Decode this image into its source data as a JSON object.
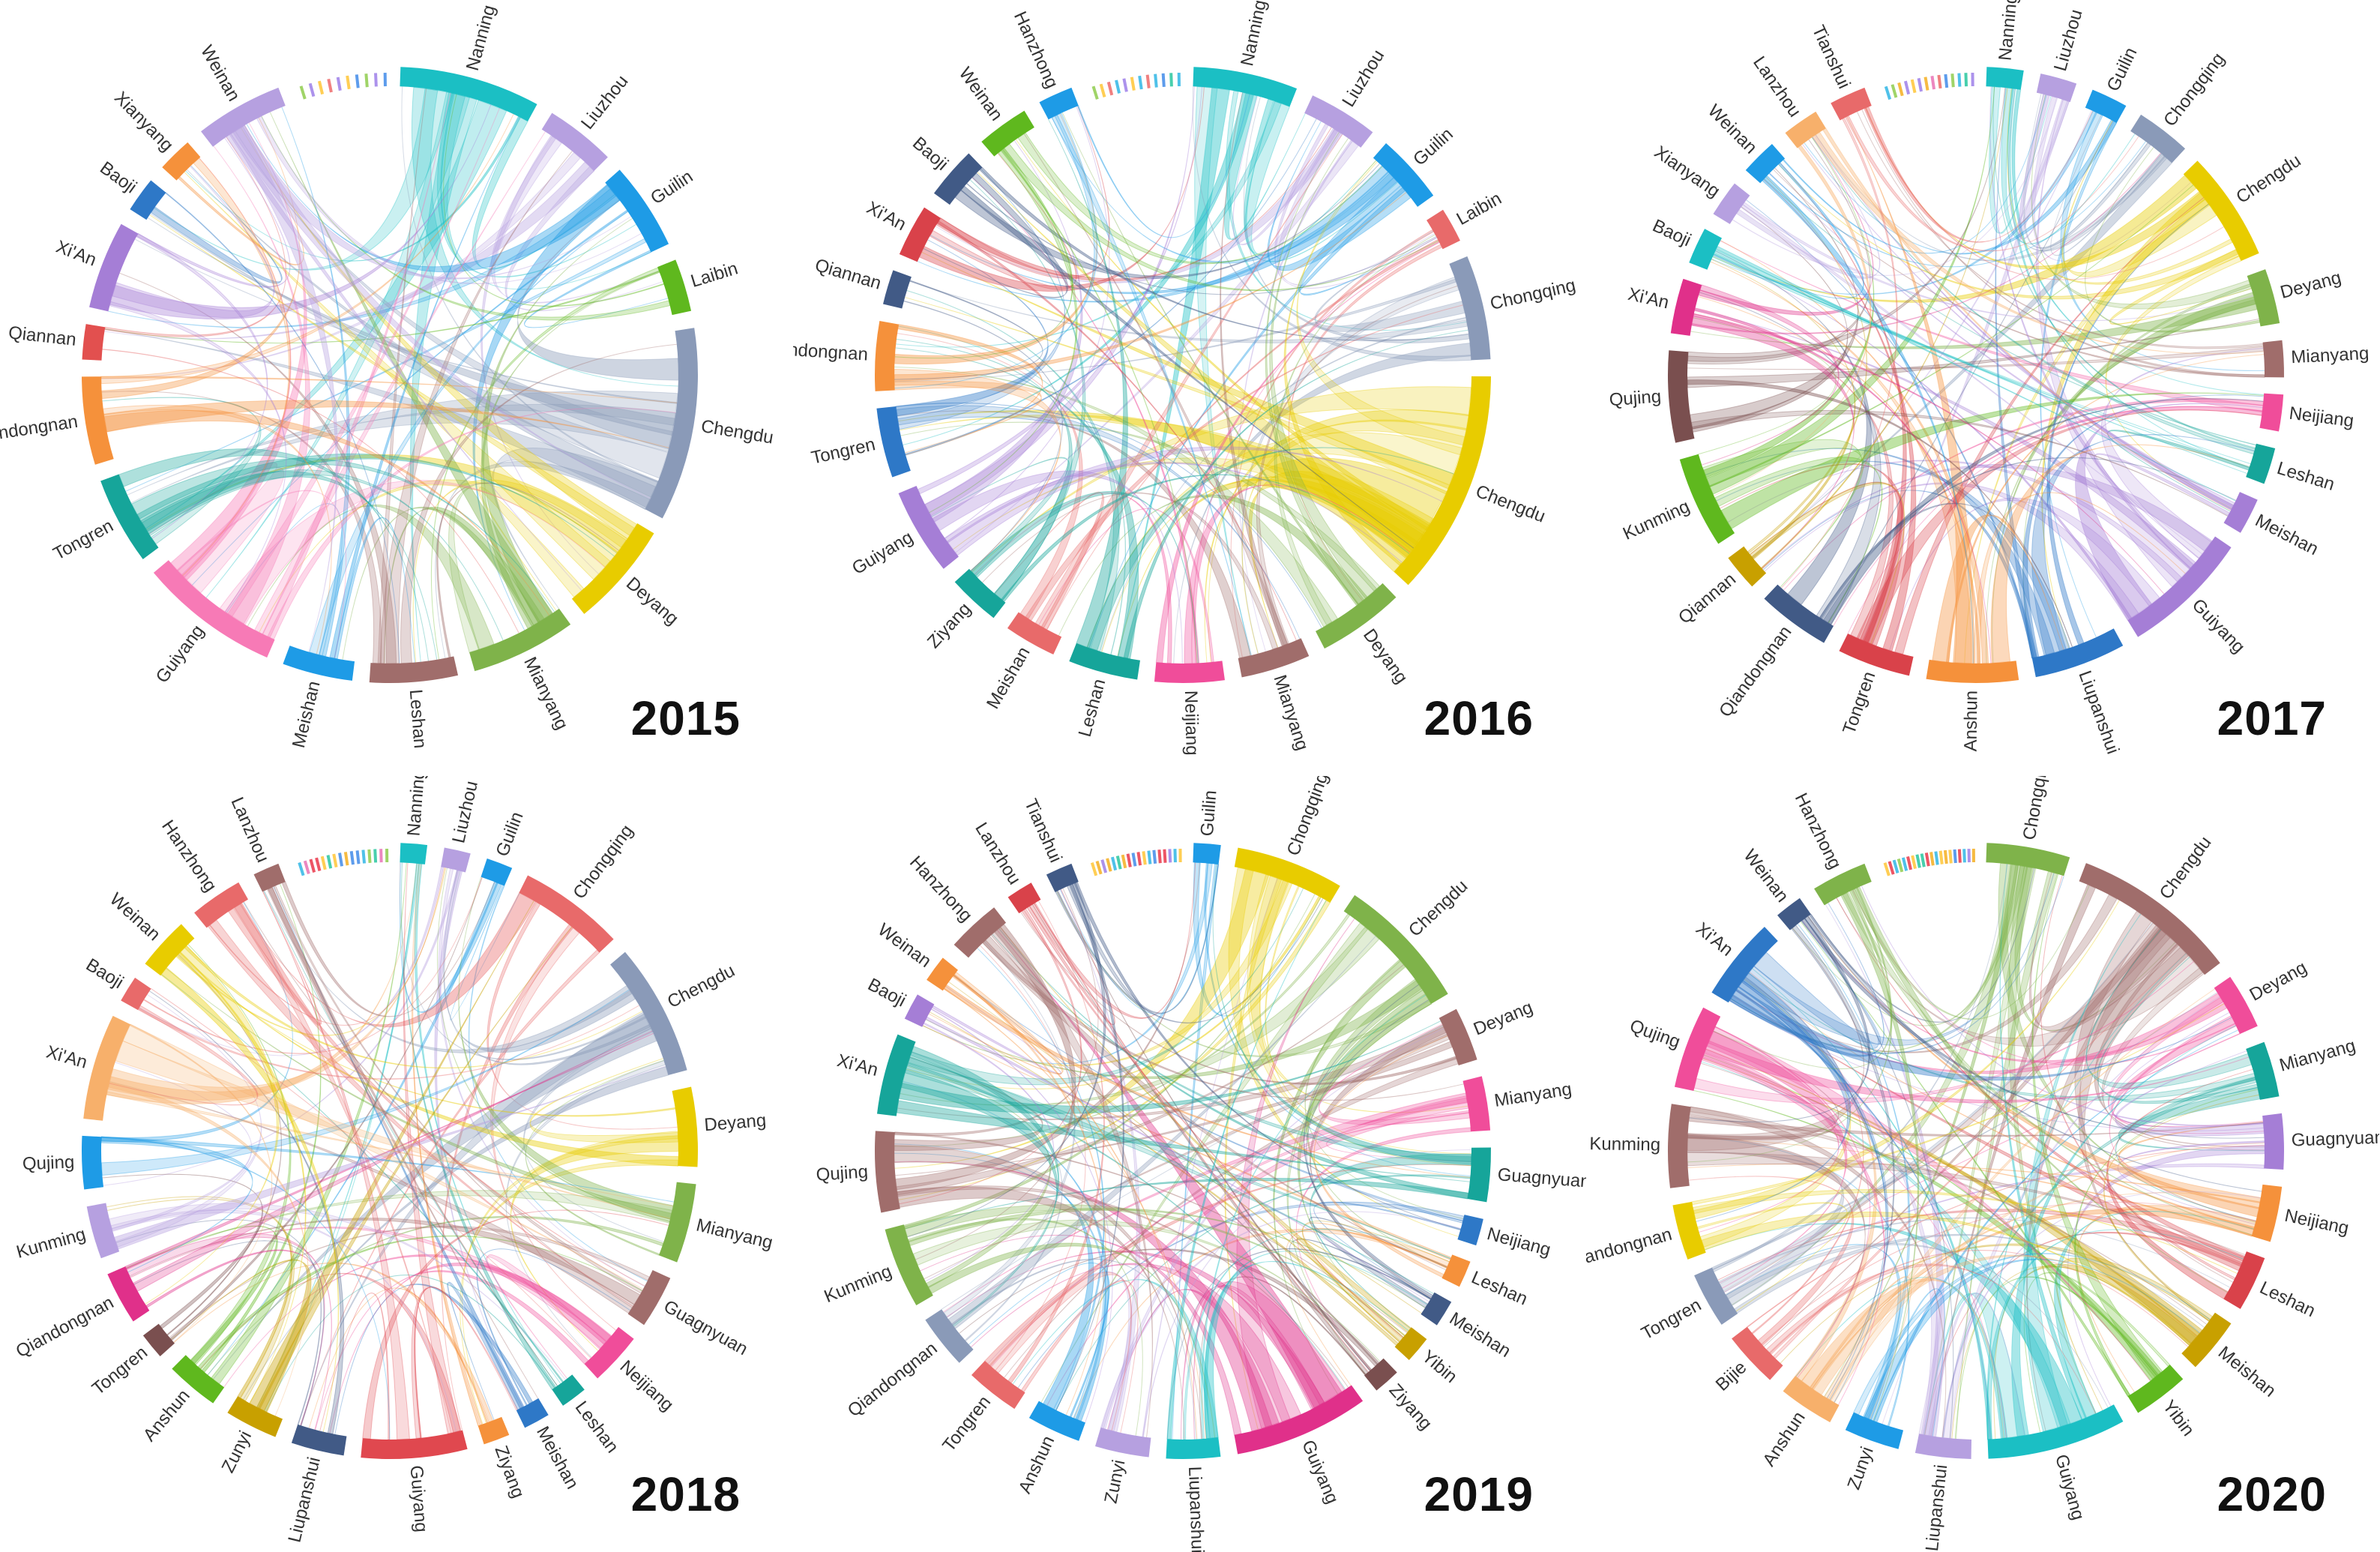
{
  "chart_data": [
    {
      "type": "chord",
      "year": "2015",
      "nodes": [
        {
          "name": "Nanning",
          "weight": 8,
          "color": "#1bbfc4"
        },
        {
          "name": "Liuzhou",
          "weight": 4,
          "color": "#b6a0e0"
        },
        {
          "name": "Guilin",
          "weight": 5,
          "color": "#1e9be6"
        },
        {
          "name": "Laibin",
          "weight": 3,
          "color": "#5fb81e"
        },
        {
          "name": "Chengdu",
          "weight": 11,
          "color": "#8a9ab8"
        },
        {
          "name": "Deyang",
          "weight": 6,
          "color": "#e8cc00"
        },
        {
          "name": "Mianyang",
          "weight": 6,
          "color": "#7fb34a"
        },
        {
          "name": "Leshan",
          "weight": 5,
          "color": "#a06d6b"
        },
        {
          "name": "Meishan",
          "weight": 4,
          "color": "#1e9be6"
        },
        {
          "name": "Guiyang",
          "weight": 8,
          "color": "#f77ab6"
        },
        {
          "name": "Tongren",
          "weight": 5,
          "color": "#16a59a"
        },
        {
          "name": "Qiandongnan",
          "weight": 5,
          "color": "#f5913b"
        },
        {
          "name": "Qiannan",
          "weight": 2,
          "color": "#e2504f"
        },
        {
          "name": "Xi'An",
          "weight": 5,
          "color": "#a57ed6"
        },
        {
          "name": "Baoji",
          "weight": 2,
          "color": "#2e78c7"
        },
        {
          "name": "Xianyang",
          "weight": 2,
          "color": "#f5913b"
        },
        {
          "name": "Weinan",
          "weight": 5,
          "color": "#b6a0e0"
        }
      ]
    },
    {
      "type": "chord",
      "year": "2016",
      "nodes": [
        {
          "name": "Nanning",
          "weight": 6,
          "color": "#1bbfc4"
        },
        {
          "name": "Liuzhou",
          "weight": 4,
          "color": "#b6a0e0"
        },
        {
          "name": "Guilin",
          "weight": 4,
          "color": "#1e9be6"
        },
        {
          "name": "Laibin",
          "weight": 2,
          "color": "#e86a6a"
        },
        {
          "name": "Chongqing",
          "weight": 6,
          "color": "#8a9ab8"
        },
        {
          "name": "Chengdu",
          "weight": 13,
          "color": "#e8cc00"
        },
        {
          "name": "Deyang",
          "weight": 5,
          "color": "#7fb34a"
        },
        {
          "name": "Mianyang",
          "weight": 4,
          "color": "#a06d6b"
        },
        {
          "name": "Neijiang",
          "weight": 4,
          "color": "#f04d9a"
        },
        {
          "name": "Leshan",
          "weight": 4,
          "color": "#16a59a"
        },
        {
          "name": "Meishan",
          "weight": 3,
          "color": "#e86a6a"
        },
        {
          "name": "Ziyang",
          "weight": 3,
          "color": "#16a59a"
        },
        {
          "name": "Guiyang",
          "weight": 5,
          "color": "#a57ed6"
        },
        {
          "name": "Tongren",
          "weight": 4,
          "color": "#2e78c7"
        },
        {
          "name": "Qiandongnan",
          "weight": 4,
          "color": "#f5913b"
        },
        {
          "name": "Qiannan",
          "weight": 2,
          "color": "#415a86"
        },
        {
          "name": "Xi'An",
          "weight": 3,
          "color": "#d9424a"
        },
        {
          "name": "Baoji",
          "weight": 3,
          "color": "#415a86"
        },
        {
          "name": "Weinan",
          "weight": 3,
          "color": "#5fb81e"
        },
        {
          "name": "Hanzhong",
          "weight": 2,
          "color": "#1e9be6"
        }
      ]
    },
    {
      "type": "chord",
      "year": "2017",
      "nodes": [
        {
          "name": "Nanning",
          "weight": 2,
          "color": "#1bbfc4"
        },
        {
          "name": "Liuzhou",
          "weight": 2,
          "color": "#b6a0e0"
        },
        {
          "name": "Guilin",
          "weight": 2,
          "color": "#1e9be6"
        },
        {
          "name": "Chongqing",
          "weight": 3,
          "color": "#8a9ab8"
        },
        {
          "name": "Chengdu",
          "weight": 6,
          "color": "#e8cc00"
        },
        {
          "name": "Deyang",
          "weight": 3,
          "color": "#7fb34a"
        },
        {
          "name": "Mianyang",
          "weight": 2,
          "color": "#a06d6b"
        },
        {
          "name": "Neijiang",
          "weight": 2,
          "color": "#f04d9a"
        },
        {
          "name": "Leshan",
          "weight": 2,
          "color": "#16a59a"
        },
        {
          "name": "Meishan",
          "weight": 2,
          "color": "#a57ed6"
        },
        {
          "name": "Guiyang",
          "weight": 7,
          "color": "#a57ed6"
        },
        {
          "name": "Liupanshui",
          "weight": 5,
          "color": "#2e78c7"
        },
        {
          "name": "Anshun",
          "weight": 5,
          "color": "#f5913b"
        },
        {
          "name": "Tongren",
          "weight": 4,
          "color": "#d9424a"
        },
        {
          "name": "Qiandongnan",
          "weight": 4,
          "color": "#415a86"
        },
        {
          "name": "Qiannan",
          "weight": 2,
          "color": "#c8a000"
        },
        {
          "name": "Kunming",
          "weight": 5,
          "color": "#5fb81e"
        },
        {
          "name": "Qujing",
          "weight": 5,
          "color": "#7a4f4f"
        },
        {
          "name": "Xi'An",
          "weight": 3,
          "color": "#e0308a"
        },
        {
          "name": "Baoji",
          "weight": 2,
          "color": "#1bbfc4"
        },
        {
          "name": "Xianyang",
          "weight": 2,
          "color": "#b6a0e0"
        },
        {
          "name": "Weinan",
          "weight": 2,
          "color": "#1e9be6"
        },
        {
          "name": "Lanzhou",
          "weight": 2,
          "color": "#f7b06b"
        },
        {
          "name": "Tianshui",
          "weight": 2,
          "color": "#e86a6a"
        }
      ]
    },
    {
      "type": "chord",
      "year": "2018",
      "nodes": [
        {
          "name": "Nanning",
          "weight": 1,
          "color": "#1bbfc4"
        },
        {
          "name": "Liuzhou",
          "weight": 1,
          "color": "#b6a0e0"
        },
        {
          "name": "Guilin",
          "weight": 1,
          "color": "#1e9be6"
        },
        {
          "name": "Chongqing",
          "weight": 4,
          "color": "#e86a6a"
        },
        {
          "name": "Chengdu",
          "weight": 5,
          "color": "#8a9ab8"
        },
        {
          "name": "Deyang",
          "weight": 3,
          "color": "#e8cc00"
        },
        {
          "name": "Mianyang",
          "weight": 3,
          "color": "#7fb34a"
        },
        {
          "name": "Guagnyuan",
          "weight": 2,
          "color": "#a06d6b"
        },
        {
          "name": "Neijiang",
          "weight": 2,
          "color": "#f04d9a"
        },
        {
          "name": "Leshan",
          "weight": 1,
          "color": "#16a59a"
        },
        {
          "name": "Meishan",
          "weight": 1,
          "color": "#2e78c7"
        },
        {
          "name": "Ziyang",
          "weight": 1,
          "color": "#f5913b"
        },
        {
          "name": "Guiyang",
          "weight": 4,
          "color": "#e0484f"
        },
        {
          "name": "Liupanshui",
          "weight": 2,
          "color": "#415a86"
        },
        {
          "name": "Zunyi",
          "weight": 2,
          "color": "#c8a000"
        },
        {
          "name": "Anshun",
          "weight": 2,
          "color": "#5fb81e"
        },
        {
          "name": "Tongren",
          "weight": 1,
          "color": "#7a4f4f"
        },
        {
          "name": "Qiandongnan",
          "weight": 2,
          "color": "#e0308a"
        },
        {
          "name": "Kunming",
          "weight": 2,
          "color": "#b6a0e0"
        },
        {
          "name": "Qujing",
          "weight": 2,
          "color": "#1e9be6"
        },
        {
          "name": "Xi'An",
          "weight": 4,
          "color": "#f7b06b"
        },
        {
          "name": "Baoji",
          "weight": 1,
          "color": "#e86a6a"
        },
        {
          "name": "Weinan",
          "weight": 2,
          "color": "#e8cc00"
        },
        {
          "name": "Hanzhong",
          "weight": 2,
          "color": "#e86a6a"
        },
        {
          "name": "Lanzhou",
          "weight": 1,
          "color": "#a06d6b"
        }
      ]
    },
    {
      "type": "chord",
      "year": "2019",
      "nodes": [
        {
          "name": "Guilin",
          "weight": 1,
          "color": "#1e9be6"
        },
        {
          "name": "Chongqing",
          "weight": 4,
          "color": "#e8cc00"
        },
        {
          "name": "Chengdu",
          "weight": 5,
          "color": "#7fb34a"
        },
        {
          "name": "Deyang",
          "weight": 2,
          "color": "#a06d6b"
        },
        {
          "name": "Mianyang",
          "weight": 2,
          "color": "#f04d9a"
        },
        {
          "name": "Guagnyuan",
          "weight": 2,
          "color": "#16a59a"
        },
        {
          "name": "Neijiang",
          "weight": 1,
          "color": "#2e78c7"
        },
        {
          "name": "Leshan",
          "weight": 1,
          "color": "#f5913b"
        },
        {
          "name": "Meishan",
          "weight": 1,
          "color": "#415a86"
        },
        {
          "name": "Yibin",
          "weight": 1,
          "color": "#c8a000"
        },
        {
          "name": "Ziyang",
          "weight": 1,
          "color": "#7a4f4f"
        },
        {
          "name": "Guiyang",
          "weight": 5,
          "color": "#e0308a"
        },
        {
          "name": "Liupanshui",
          "weight": 2,
          "color": "#1bbfc4"
        },
        {
          "name": "Zunyi",
          "weight": 2,
          "color": "#b6a0e0"
        },
        {
          "name": "Anshun",
          "weight": 2,
          "color": "#1e9be6"
        },
        {
          "name": "Tongren",
          "weight": 2,
          "color": "#e86a6a"
        },
        {
          "name": "Qiandongnan",
          "weight": 2,
          "color": "#8a9ab8"
        },
        {
          "name": "Kunming",
          "weight": 3,
          "color": "#7fb34a"
        },
        {
          "name": "Qujing",
          "weight": 3,
          "color": "#a06d6b"
        },
        {
          "name": "Xi'An",
          "weight": 3,
          "color": "#16a59a"
        },
        {
          "name": "Baoji",
          "weight": 1,
          "color": "#a57ed6"
        },
        {
          "name": "Weinan",
          "weight": 1,
          "color": "#f5913b"
        },
        {
          "name": "Hanzhong",
          "weight": 2,
          "color": "#a06d6b"
        },
        {
          "name": "Lanzhou",
          "weight": 1,
          "color": "#d9424a"
        },
        {
          "name": "Tianshui",
          "weight": 1,
          "color": "#415a86"
        }
      ]
    },
    {
      "type": "chord",
      "year": "2020",
      "nodes": [
        {
          "name": "Chongqing",
          "weight": 3,
          "color": "#7fb34a"
        },
        {
          "name": "Chengdu",
          "weight": 6,
          "color": "#a06d6b"
        },
        {
          "name": "Deyang",
          "weight": 2,
          "color": "#f04d9a"
        },
        {
          "name": "Mianyang",
          "weight": 2,
          "color": "#16a59a"
        },
        {
          "name": "Guagnyuan",
          "weight": 2,
          "color": "#a57ed6"
        },
        {
          "name": "Neijiang",
          "weight": 2,
          "color": "#f5913b"
        },
        {
          "name": "Leshan",
          "weight": 2,
          "color": "#d9424a"
        },
        {
          "name": "Meishan",
          "weight": 2,
          "color": "#c8a000"
        },
        {
          "name": "Yibin",
          "weight": 2,
          "color": "#5fb81e"
        },
        {
          "name": "Guiyang",
          "weight": 5,
          "color": "#1bbfc4"
        },
        {
          "name": "Liupanshui",
          "weight": 2,
          "color": "#b6a0e0"
        },
        {
          "name": "Zunyi",
          "weight": 2,
          "color": "#1e9be6"
        },
        {
          "name": "Anshun",
          "weight": 2,
          "color": "#f7b06b"
        },
        {
          "name": "Bijie",
          "weight": 2,
          "color": "#e86a6a"
        },
        {
          "name": "Tongren",
          "weight": 2,
          "color": "#8a9ab8"
        },
        {
          "name": "Qiandongnan",
          "weight": 2,
          "color": "#e8cc00"
        },
        {
          "name": "Kunming",
          "weight": 3,
          "color": "#a06d6b"
        },
        {
          "name": "Qujing",
          "weight": 3,
          "color": "#f04d9a"
        },
        {
          "name": "Xi'An",
          "weight": 3,
          "color": "#2e78c7"
        },
        {
          "name": "Weinan",
          "weight": 1,
          "color": "#415a86"
        },
        {
          "name": "Hanzhong",
          "weight": 2,
          "color": "#7fb34a"
        }
      ]
    }
  ]
}
